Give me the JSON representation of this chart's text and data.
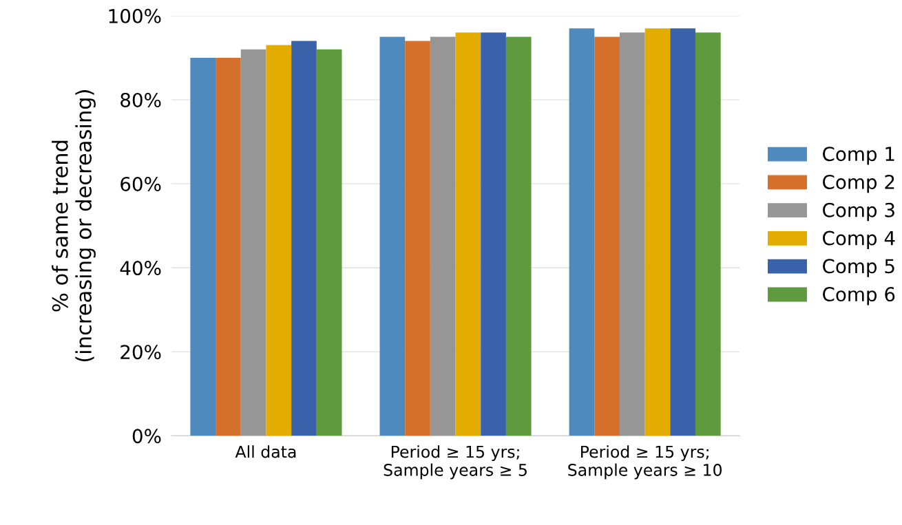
{
  "chart_data": {
    "type": "bar",
    "ylabel": "% of same trend\n(increasing or decreasing)",
    "categories": [
      "All data",
      "Period ≥ 15 yrs;\nSample years ≥ 5",
      "Period ≥ 15 yrs;\nSample years ≥ 10"
    ],
    "series": [
      {
        "name": "Comp 1",
        "color": "#4e8abe",
        "values": [
          90,
          95,
          97
        ]
      },
      {
        "name": "Comp 2",
        "color": "#d4702b",
        "values": [
          90,
          94,
          95
        ]
      },
      {
        "name": "Comp 3",
        "color": "#969696",
        "values": [
          92,
          95,
          96
        ]
      },
      {
        "name": "Comp 4",
        "color": "#e3ac00",
        "values": [
          93,
          96,
          97
        ]
      },
      {
        "name": "Comp 5",
        "color": "#3a62ab",
        "values": [
          94,
          96,
          97
        ]
      },
      {
        "name": "Comp 6",
        "color": "#5f9b3e",
        "values": [
          92,
          95,
          96
        ]
      }
    ],
    "ylim": [
      0,
      100
    ],
    "yticks": [
      {
        "value": 0,
        "label": "0%"
      },
      {
        "value": 20,
        "label": "20%"
      },
      {
        "value": 40,
        "label": "40%"
      },
      {
        "value": 60,
        "label": "60%"
      },
      {
        "value": 80,
        "label": "80%"
      },
      {
        "value": 100,
        "label": "100%"
      }
    ],
    "grid": "y",
    "legend": "right"
  }
}
